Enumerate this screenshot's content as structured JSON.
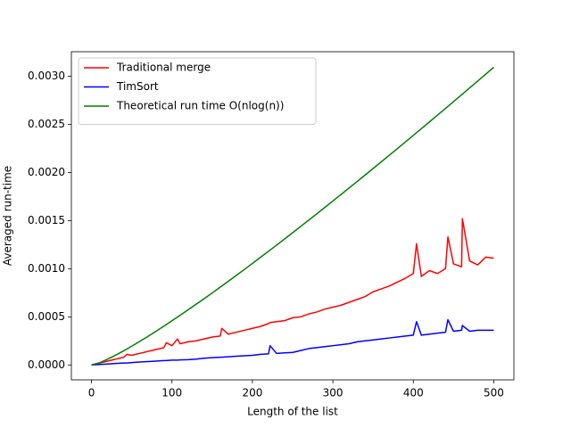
{
  "chart_data": {
    "type": "line",
    "xlabel": "Length of the list",
    "ylabel": "Averaged run-time",
    "x": [
      0,
      10,
      20,
      30,
      40,
      44,
      50,
      60,
      70,
      80,
      90,
      93,
      100,
      107,
      110,
      120,
      130,
      140,
      150,
      160,
      162,
      170,
      180,
      190,
      200,
      210,
      220,
      222,
      230,
      240,
      250,
      260,
      270,
      280,
      290,
      300,
      310,
      320,
      330,
      340,
      350,
      360,
      370,
      380,
      390,
      400,
      404,
      410,
      420,
      430,
      440,
      443,
      450,
      460,
      461,
      470,
      480,
      490,
      500
    ],
    "series": [
      {
        "name": "Traditional merge",
        "color": "#ff0000",
        "values": [
          0,
          2e-05,
          4e-05,
          6e-05,
          8e-05,
          0.00011,
          0.0001,
          0.00012,
          0.00014,
          0.00016,
          0.00018,
          0.00023,
          0.0002,
          0.00027,
          0.00022,
          0.00024,
          0.00025,
          0.00027,
          0.00029,
          0.0003,
          0.00038,
          0.00032,
          0.00034,
          0.00036,
          0.00038,
          0.0004,
          0.00043,
          0.00044,
          0.00045,
          0.00046,
          0.00049,
          0.0005,
          0.00053,
          0.00055,
          0.00058,
          0.0006,
          0.00062,
          0.00065,
          0.00068,
          0.00071,
          0.00076,
          0.00079,
          0.00082,
          0.00086,
          0.0009,
          0.00095,
          0.00126,
          0.00092,
          0.00098,
          0.00095,
          0.001,
          0.00133,
          0.00105,
          0.00102,
          0.00152,
          0.00108,
          0.00104,
          0.00112,
          0.00111
        ]
      },
      {
        "name": "TimSort",
        "color": "#0000ff",
        "values": [
          0,
          5e-06,
          1e-05,
          1.5e-05,
          2e-05,
          2e-05,
          2.5e-05,
          3e-05,
          3.5e-05,
          4e-05,
          4.5e-05,
          4.5e-05,
          5e-05,
          5e-05,
          5.2e-05,
          5.5e-05,
          6e-05,
          7e-05,
          7.5e-05,
          8e-05,
          8e-05,
          8.5e-05,
          9e-05,
          9.5e-05,
          0.0001,
          0.00011,
          0.000115,
          0.0002,
          0.00012,
          0.000125,
          0.00013,
          0.00015,
          0.00017,
          0.00018,
          0.00019,
          0.0002,
          0.00021,
          0.00022,
          0.00024,
          0.00025,
          0.00026,
          0.00027,
          0.00028,
          0.00029,
          0.0003,
          0.00031,
          0.00045,
          0.00031,
          0.00032,
          0.00033,
          0.00034,
          0.00047,
          0.00035,
          0.00036,
          0.00041,
          0.00035,
          0.00036,
          0.00036,
          0.00036
        ]
      },
      {
        "name": "Theoretical run time O(nlog(n))",
        "color": "#008000",
        "values": [
          0,
          2.29e-05,
          5.96e-05,
          0.0001016,
          0.0001469,
          0.0001657,
          0.0001947,
          0.0002445,
          0.000296,
          0.000349,
          0.0004032,
          0.0004196,
          0.0004585,
          0.0004977,
          0.0005147,
          0.0005719,
          0.0006299,
          0.0006886,
          0.000748,
          0.0008083,
          0.0008204,
          0.000869,
          0.0009305,
          0.0009924,
          0.0010549,
          0.0011178,
          0.0011811,
          0.0011939,
          0.001245,
          0.0013094,
          0.001374,
          0.0014392,
          0.0015047,
          0.0015706,
          0.0016368,
          0.0017033,
          0.0017703,
          0.0018375,
          0.001905,
          0.0019728,
          0.002041,
          0.0021094,
          0.002178,
          0.002247,
          0.0023162,
          0.0023857,
          0.0024136,
          0.0024554,
          0.0025253,
          0.0025955,
          0.002666,
          0.0026871,
          0.0027366,
          0.0028075,
          0.0028147,
          0.0028787,
          0.0029501,
          0.0030216,
          0.0030932
        ]
      }
    ],
    "xlim": [
      -25,
      525
    ],
    "xticks": [
      0,
      100,
      200,
      300,
      400,
      500
    ],
    "ylim": [
      -0.000155,
      0.003255
    ],
    "yticks": [
      {
        "value": 0,
        "label": "0.0000"
      },
      {
        "value": 0.0005,
        "label": "0.0005"
      },
      {
        "value": 0.001,
        "label": "0.0010"
      },
      {
        "value": 0.0015,
        "label": "0.0015"
      },
      {
        "value": 0.002,
        "label": "0.0020"
      },
      {
        "value": 0.0025,
        "label": "0.0025"
      },
      {
        "value": 0.003,
        "label": "0.0030"
      }
    ],
    "legend": "upper left",
    "grid": false
  }
}
